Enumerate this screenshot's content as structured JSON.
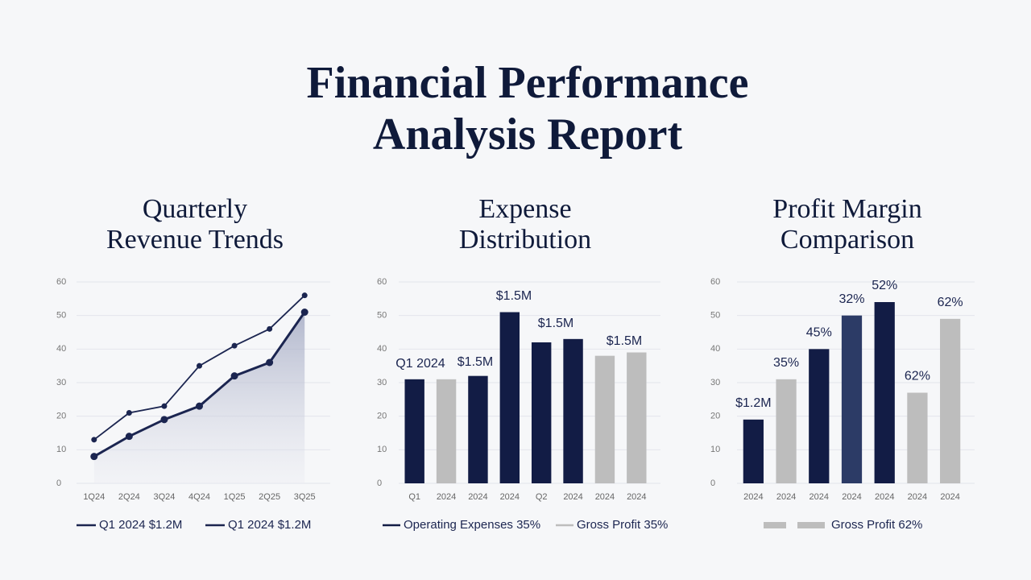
{
  "title": [
    "Financial Performance",
    "Analysis Report"
  ],
  "chart_data": [
    {
      "type": "line",
      "title": [
        "Quarterly",
        "Revenue Trends"
      ],
      "categories": [
        "1Q24",
        "2Q24",
        "3Q24",
        "4Q24",
        "1Q25",
        "2Q25",
        "3Q25"
      ],
      "series": [
        {
          "name": "Q1 2024 $1.2M",
          "color": "#1b2550",
          "values": [
            13,
            21,
            23,
            35,
            41,
            46,
            56
          ]
        },
        {
          "name": "Q1 2024 $1.2M",
          "color": "#1b2550",
          "values": [
            8,
            14,
            19,
            23,
            32,
            36,
            51
          ]
        }
      ],
      "ylim": [
        0,
        60
      ],
      "yticks": [
        0,
        10,
        20,
        30,
        40,
        50,
        60
      ],
      "grid": true
    },
    {
      "type": "bar",
      "title": [
        "Expense",
        "Distribution"
      ],
      "categories": [
        "Q1",
        "2024",
        "2024",
        "2024",
        "Q2",
        "2024",
        "2024",
        "2024"
      ],
      "values": [
        31,
        31,
        32,
        51,
        42,
        43,
        38,
        39
      ],
      "colors": [
        "#121c45",
        "#bdbdbd",
        "#121c45",
        "#121c45",
        "#121c45",
        "#121c45",
        "#bdbdbd",
        "#bdbdbd"
      ],
      "annotations": [
        "Q1 2024",
        "$1.5M",
        "$1.5M",
        "$1.5M",
        "$1.5M"
      ],
      "legend": [
        {
          "name": "Operating Expenses 35%",
          "color": "#121c45"
        },
        {
          "name": "Gross Profit 35%",
          "color": "#bdbdbd"
        }
      ],
      "ylim": [
        0,
        60
      ],
      "yticks": [
        0,
        10,
        20,
        30,
        40,
        50,
        60
      ],
      "grid": true
    },
    {
      "type": "bar",
      "title": [
        "Profit Margin",
        "Comparison"
      ],
      "categories": [
        "2024",
        "2024",
        "2024",
        "2024",
        "2024",
        "2024",
        "2024"
      ],
      "values": [
        19,
        31,
        40,
        50,
        54,
        27,
        49
      ],
      "colors": [
        "#121c45",
        "#bdbdbd",
        "#121c45",
        "#2c3b66",
        "#121c45",
        "#bdbdbd",
        "#bdbdbd"
      ],
      "annotations": [
        "$1.2M",
        "35%",
        "45%",
        "32%",
        "52%",
        "62%",
        "62%"
      ],
      "legend": [
        {
          "name": "Gross Profit 62%",
          "color": "#bdbdbd"
        }
      ],
      "ylim": [
        0,
        60
      ],
      "yticks": [
        0,
        10,
        20,
        30,
        40,
        50,
        60
      ],
      "grid": true
    }
  ]
}
